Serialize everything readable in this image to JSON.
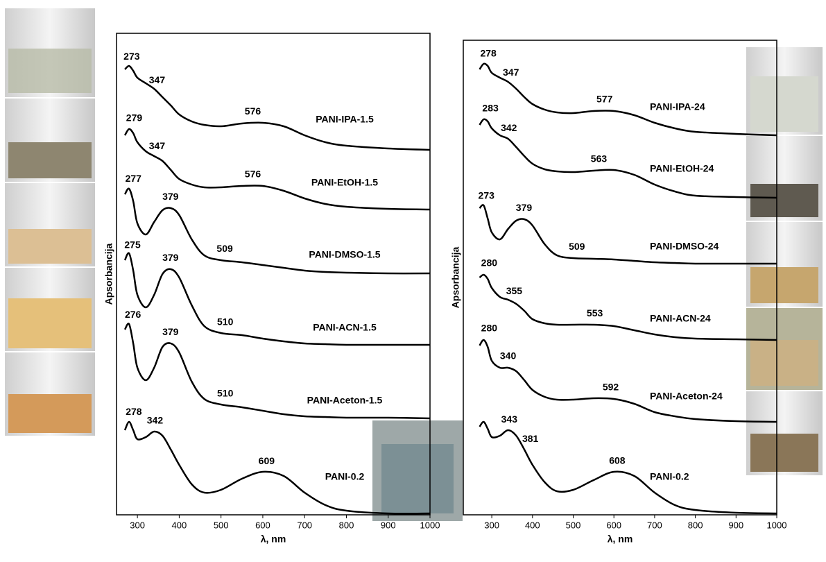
{
  "chart_data": [
    {
      "type": "line",
      "xlabel": "λ, nm",
      "ylabel": "Apsorbancija",
      "x": [
        270,
        280,
        290,
        300,
        320,
        340,
        360,
        380,
        400,
        430,
        460,
        500,
        550,
        600,
        650,
        700,
        750,
        800,
        900,
        1000
      ],
      "xlim": [
        250,
        1000
      ],
      "xticks": [
        300,
        400,
        500,
        600,
        700,
        800,
        900,
        1000
      ],
      "ylim": [
        0,
        694
      ],
      "series": [
        {
          "name": "PANI-IPA-1.5",
          "color": "#000000",
          "peaks": [
            273,
            347,
            576
          ],
          "values": [
            642,
            647,
            640,
            630,
            622,
            614,
            602,
            590,
            577,
            567,
            562,
            560,
            564,
            565,
            560,
            547,
            537,
            532,
            528,
            526
          ]
        },
        {
          "name": "PANI-EtOH-1.5",
          "color": "#000000",
          "peaks": [
            279,
            347,
            576
          ],
          "values": [
            547,
            556,
            550,
            537,
            524,
            517,
            510,
            497,
            484,
            476,
            472,
            472,
            474,
            474,
            467,
            456,
            448,
            444,
            441,
            440
          ]
        },
        {
          "name": "PANI-DMSO-1.5",
          "color": "#000000",
          "peaks": [
            277,
            379,
            509
          ],
          "values": [
            462,
            470,
            452,
            420,
            404,
            422,
            439,
            442,
            432,
            397,
            374,
            367,
            364,
            360,
            356,
            352,
            350,
            349,
            348,
            348
          ]
        },
        {
          "name": "PANI-ACN-1.5",
          "color": "#000000",
          "peaks": [
            275,
            379,
            510
          ],
          "values": [
            367,
            377,
            352,
            317,
            299,
            317,
            347,
            354,
            342,
            302,
            272,
            262,
            259,
            254,
            250,
            247,
            246,
            245,
            245,
            245
          ]
        },
        {
          "name": "PANI-Aceton-1.5",
          "color": "#000000",
          "peaks": [
            276,
            379,
            510
          ],
          "values": [
            267,
            275,
            247,
            212,
            194,
            212,
            242,
            247,
            234,
            192,
            167,
            159,
            155,
            150,
            145,
            142,
            141,
            140,
            140,
            139
          ]
        },
        {
          "name": "PANI-0.2",
          "color": "#000000",
          "peaks": [
            278,
            342,
            609
          ],
          "values": [
            122,
            134,
            122,
            109,
            112,
            120,
            114,
            94,
            72,
            44,
            32,
            36,
            52,
            62,
            56,
            32,
            14,
            6,
            2,
            2
          ]
        }
      ]
    },
    {
      "type": "line",
      "xlabel": "λ, nm",
      "ylabel": "Apsorbancija",
      "x": [
        270,
        280,
        290,
        300,
        320,
        340,
        360,
        380,
        400,
        430,
        460,
        500,
        550,
        600,
        650,
        700,
        750,
        800,
        900,
        1000
      ],
      "xlim": [
        230,
        1000
      ],
      "xticks": [
        300,
        400,
        500,
        600,
        700,
        800,
        900,
        1000
      ],
      "ylim": [
        0,
        694
      ],
      "series": [
        {
          "name": "PANI-IPA-24",
          "color": "#000000",
          "peaks": [
            278,
            347,
            577
          ],
          "values": [
            642,
            650,
            647,
            637,
            630,
            624,
            614,
            602,
            592,
            584,
            580,
            579,
            582,
            582,
            576,
            565,
            557,
            552,
            549,
            547
          ]
        },
        {
          "name": "PANI-EtOH-24",
          "color": "#000000",
          "peaks": [
            283,
            342,
            563
          ],
          "values": [
            562,
            570,
            567,
            557,
            547,
            542,
            530,
            517,
            506,
            498,
            495,
            494,
            496,
            497,
            490,
            476,
            466,
            460,
            458,
            457
          ]
        },
        {
          "name": "PANI-DMSO-24",
          "color": "#000000",
          "peaks": [
            273,
            379,
            509
          ],
          "values": [
            442,
            446,
            427,
            407,
            397,
            412,
            424,
            426,
            417,
            390,
            374,
            370,
            369,
            368,
            366,
            364,
            363,
            362,
            362,
            362
          ]
        },
        {
          "name": "PANI-ACN-24",
          "color": "#000000",
          "peaks": [
            280,
            355,
            553
          ],
          "values": [
            342,
            346,
            340,
            327,
            314,
            310,
            304,
            294,
            282,
            276,
            274,
            274,
            274,
            272,
            266,
            260,
            256,
            254,
            253,
            252
          ]
        },
        {
          "name": "PANI-Aceton-24",
          "color": "#000000",
          "peaks": [
            280,
            340,
            592
          ],
          "values": [
            244,
            252,
            242,
            222,
            212,
            212,
            207,
            194,
            180,
            170,
            166,
            166,
            168,
            167,
            160,
            148,
            142,
            138,
            135,
            134
          ]
        },
        {
          "name": "PANI-0.2",
          "color": "#000000",
          "peaks": [
            381,
            343,
            608
          ],
          "values": [
            127,
            134,
            124,
            112,
            114,
            122,
            114,
            94,
            72,
            47,
            34,
            36,
            50,
            62,
            56,
            32,
            14,
            7,
            3,
            2
          ]
        }
      ]
    }
  ]
}
